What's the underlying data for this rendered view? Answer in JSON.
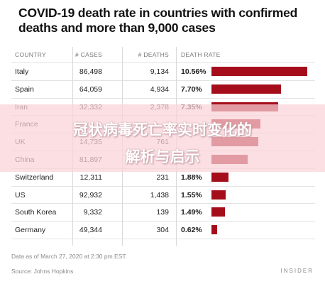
{
  "chart_data": {
    "type": "table",
    "title": "COVID-19 death rate in countries with confirmed deaths and more than 9,000 cases",
    "columns": [
      "COUNTRY",
      "# CASES",
      "# DEATHS",
      "DEATH RATE"
    ],
    "rows": [
      {
        "country": "Italy",
        "cases": "86,498",
        "deaths": "9,134",
        "rate_label": "10.56%",
        "rate": 10.56
      },
      {
        "country": "Spain",
        "cases": "64,059",
        "deaths": "4,934",
        "rate_label": "7.70%",
        "rate": 7.7
      },
      {
        "country": "Iran",
        "cases": "32,332",
        "deaths": "2,378",
        "rate_label": "7.35%",
        "rate": 7.35
      },
      {
        "country": "France",
        "cases": "",
        "deaths": "",
        "rate_label": "",
        "rate": 5.4
      },
      {
        "country": "UK",
        "cases": "14,735",
        "deaths": "761",
        "rate_label": "",
        "rate": 5.16
      },
      {
        "country": "China",
        "cases": "81,897",
        "deaths": "",
        "rate_label": "",
        "rate": 4.0
      },
      {
        "country": "Switzerland",
        "cases": "12,311",
        "deaths": "231",
        "rate_label": "1.88%",
        "rate": 1.88
      },
      {
        "country": "US",
        "cases": "92,932",
        "deaths": "1,438",
        "rate_label": "1.55%",
        "rate": 1.55
      },
      {
        "country": "South Korea",
        "cases": "9,332",
        "deaths": "139",
        "rate_label": "1.49%",
        "rate": 1.49
      },
      {
        "country": "Germany",
        "cases": "49,344",
        "deaths": "304",
        "rate_label": "0.62%",
        "rate": 0.62
      }
    ],
    "bar_color": "#a50d1b",
    "rate_max": 10.56
  },
  "footnote": "Data as of March 27, 2020 at 2:30 pm EST.",
  "source": "Source: Johns Hopkins",
  "brand": "INSIDER",
  "overlay": {
    "line1": "冠状病毒死亡率实时变化的",
    "line2": "解析与启示"
  }
}
